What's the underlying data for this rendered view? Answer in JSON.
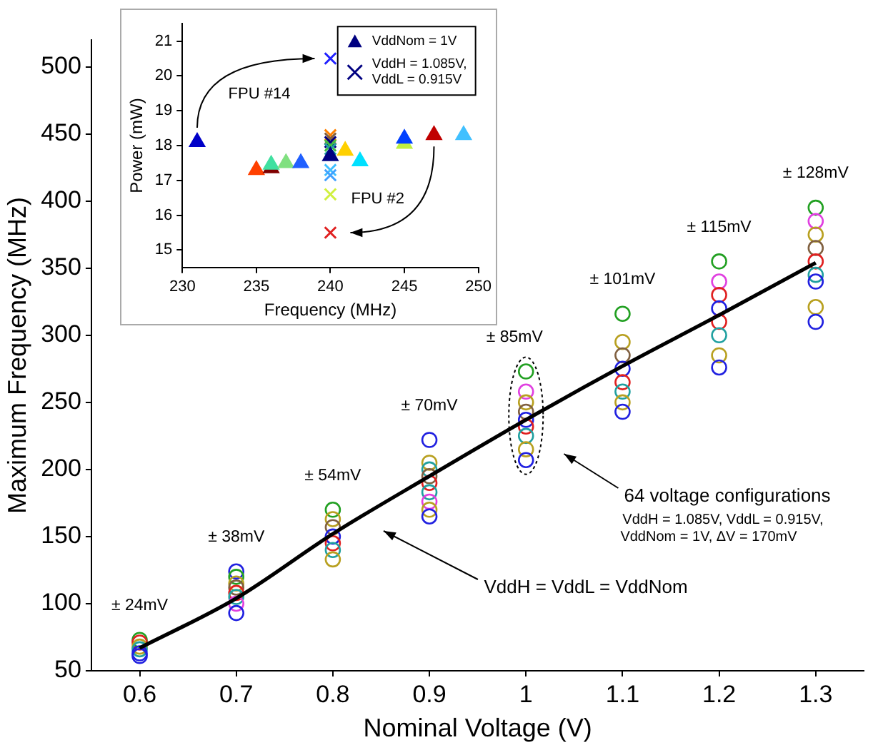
{
  "chart_data": [
    {
      "type": "scatter",
      "xlabel": "Nominal Voltage (V)",
      "ylabel": "Maximum Frequency (MHz)",
      "xlim": [
        0.55,
        1.35
      ],
      "xticks": [
        0.6,
        0.7,
        0.8,
        0.9,
        1,
        1.1,
        1.2,
        1.3
      ],
      "ylim": [
        50,
        520
      ],
      "yticks": [
        50,
        100,
        150,
        200,
        250,
        300,
        350,
        400,
        450,
        500
      ],
      "grid": false,
      "legend": false,
      "series": [
        {
          "marker": "circle",
          "x": [
            0.6,
            0.6,
            0.6,
            0.6,
            0.6,
            0.6,
            0.7,
            0.7,
            0.7,
            0.7,
            0.7,
            0.7,
            0.7,
            0.7,
            0.8,
            0.8,
            0.8,
            0.8,
            0.8,
            0.8,
            0.8,
            0.9,
            0.9,
            0.9,
            0.9,
            0.9,
            0.9,
            0.9,
            0.9,
            0.9,
            1,
            1,
            1,
            1,
            1,
            1,
            1,
            1,
            1,
            1.1,
            1.1,
            1.1,
            1.1,
            1.1,
            1.1,
            1.1,
            1.1,
            1.2,
            1.2,
            1.2,
            1.2,
            1.2,
            1.2,
            1.2,
            1.2,
            1.3,
            1.3,
            1.3,
            1.3,
            1.3,
            1.3,
            1.3,
            1.3,
            1.3
          ],
          "values": [
            73,
            71,
            68,
            66,
            63,
            61,
            124,
            120,
            115,
            112,
            108,
            105,
            100,
            93,
            170,
            163,
            157,
            150,
            145,
            140,
            133,
            222,
            205,
            200,
            195,
            190,
            183,
            176,
            170,
            165,
            273,
            258,
            250,
            243,
            237,
            232,
            225,
            215,
            207,
            316,
            295,
            285,
            275,
            265,
            258,
            250,
            243,
            355,
            340,
            330,
            320,
            310,
            300,
            285,
            276,
            395,
            385,
            375,
            365,
            355,
            345,
            340,
            321,
            310
          ],
          "colors": [
            "#22a022",
            "#e02020",
            "#b8a020",
            "#20a0a0",
            "#2020e0",
            "#2020e0",
            "#2020e0",
            "#22a022",
            "#b8a020",
            "#806040",
            "#e02020",
            "#20a0a0",
            "#e040e0",
            "#2020e0",
            "#22a022",
            "#b8a020",
            "#806040",
            "#2020e0",
            "#e02020",
            "#20a0a0",
            "#b8a020",
            "#2020e0",
            "#b8a020",
            "#20a0a0",
            "#806040",
            "#e02020",
            "#20a0a0",
            "#e040e0",
            "#b8a020",
            "#2020e0",
            "#22a022",
            "#e040e0",
            "#b8a020",
            "#806040",
            "#2020e0",
            "#e02020",
            "#20a0a0",
            "#b8a020",
            "#2020e0",
            "#22a022",
            "#b8a020",
            "#806040",
            "#2020e0",
            "#e02020",
            "#20a0a0",
            "#b8a020",
            "#2020e0",
            "#22a022",
            "#e040e0",
            "#e02020",
            "#2020e0",
            "#e02020",
            "#20a0a0",
            "#b8a020",
            "#2020e0",
            "#22a022",
            "#e040e0",
            "#b8a020",
            "#806040",
            "#e02020",
            "#20a0a0",
            "#2020e0",
            "#b8a020",
            "#2020e0"
          ]
        },
        {
          "type": "line",
          "marker": "none",
          "line_style": "solid",
          "color": "#000000",
          "x": [
            0.6,
            0.7,
            0.8,
            0.9,
            1,
            1.1,
            1.2,
            1.3
          ],
          "values": [
            67,
            104,
            152,
            195,
            237,
            277,
            315,
            354
          ]
        }
      ],
      "annotations": [
        "± 24mV",
        "± 38mV",
        "± 54mV",
        "± 70mV",
        "± 85mV",
        "± 101mV",
        "± 115mV",
        "± 128mV",
        "64 voltage configurations",
        "VddH = 1.085V, VddL = 0.915V,",
        "VddNom = 1V, ΔV = 170mV",
        "VddH = VddL = VddNom"
      ]
    },
    {
      "type": "scatter",
      "xlabel": "Frequency (MHz)",
      "ylabel": "Power (mW)",
      "xlim": [
        230,
        250
      ],
      "xticks": [
        230,
        235,
        240,
        245,
        250
      ],
      "ylim": [
        14.5,
        21.5
      ],
      "yticks": [
        15,
        16,
        17,
        18,
        19,
        20,
        21
      ],
      "grid": false,
      "legend": "top right",
      "series": [
        {
          "name": "VddNom = 1V",
          "marker": "triangle",
          "color": "#000080",
          "x": [
            231,
            235,
            236,
            236,
            237,
            238,
            240,
            241,
            242,
            245,
            245,
            247,
            249
          ],
          "values": [
            18.1,
            17.3,
            17.35,
            17.45,
            17.5,
            17.5,
            17.7,
            17.85,
            17.55,
            18.05,
            18.2,
            18.3,
            18.3
          ],
          "colors": [
            "#0000c8",
            "#ff4000",
            "#800000",
            "#40e0a0",
            "#80e080",
            "#2060ff",
            "#000080",
            "#ffd000",
            "#00e0ff",
            "#c0f040",
            "#0040ff",
            "#c00000",
            "#40c0ff"
          ]
        },
        {
          "name": "VddH = 1.085V, VddL = 0.915V",
          "marker": "cross",
          "color": "#000080",
          "x": [
            240,
            240,
            240,
            240,
            240,
            240,
            240,
            240,
            240,
            240
          ],
          "values": [
            20.5,
            18.3,
            18.2,
            18.1,
            18,
            17.9,
            17.3,
            17.15,
            16.6,
            15.5
          ],
          "colors": [
            "#2020ff",
            "#ff8000",
            "#806040",
            "#000080",
            "#40c040",
            "#20a0a0",
            "#40c0ff",
            "#40a0ff",
            "#d0f040",
            "#e02020"
          ]
        }
      ],
      "annotations": [
        "FPU #14",
        "FPU #2"
      ]
    }
  ]
}
